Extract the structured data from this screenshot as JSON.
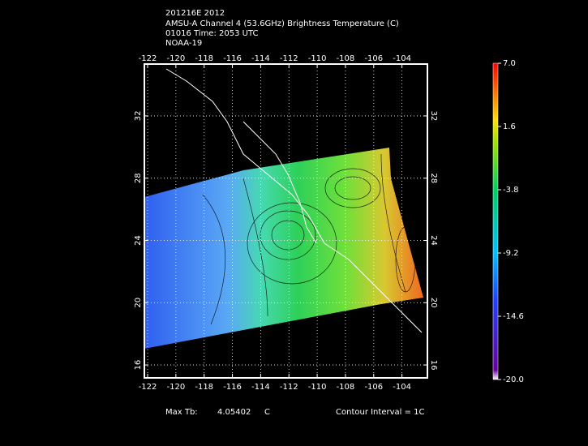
{
  "title_lines": [
    "201216E 2012",
    "AMSU-A Channel 4 (53.6GHz) Brightness Temperature (C)",
    "01016 Time: 2053 UTC",
    "NOAA-19"
  ],
  "map": {
    "xlim": [
      -122.23,
      -102.2
    ],
    "ylim": [
      15.17,
      35.33
    ],
    "xticks": [
      -122,
      -120,
      -118,
      -116,
      -114,
      -112,
      -110,
      -108,
      -106,
      -104
    ],
    "yticks": [
      16,
      20,
      24,
      28,
      32
    ],
    "grid": true
  },
  "colorbar": {
    "ylim": [
      -20,
      7
    ],
    "ticks": [
      {
        "value": 7,
        "label": "7.0"
      },
      1.6,
      -3.8,
      -9.2,
      -14.6,
      {
        "value": -20,
        "label": "-20.0"
      }
    ]
  },
  "footer": {
    "max_label": "Max Tb:",
    "max_value": 4.05402,
    "max_unit": "C",
    "contour": "Contour Interval = 1C"
  }
}
